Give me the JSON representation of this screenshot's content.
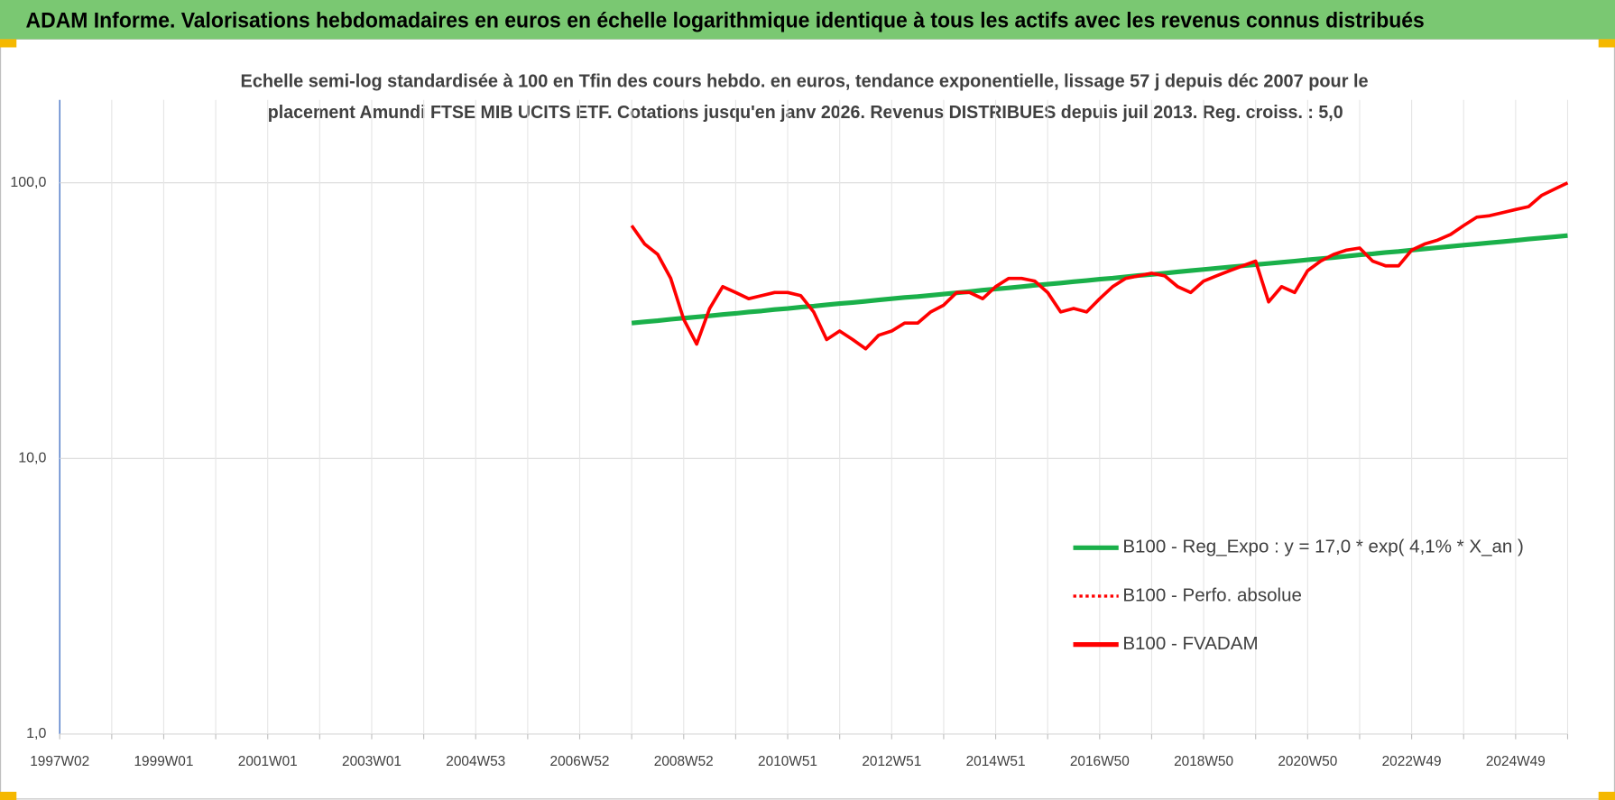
{
  "chart_data": {
    "type": "line",
    "title": "ADAM Informe. Valorisations hebdomadaires en euros en échelle logarithmique identique à tous les actifs avec les revenus connus distribués",
    "subtitle": [
      "Echelle semi-log standardisée à 100 en Tfin des cours hebdo. en euros, tendance exponentielle, lissage 57 j depuis déc 2007 pour le",
      "placement Amundi FTSE MIB UCITS ETF. Cotations jusqu'en janv 2026. Revenus DISTRIBUES depuis juil 2013. Reg. croiss. : 5,0"
    ],
    "categories": [
      "1997W02",
      null,
      null,
      null,
      null,
      null,
      null,
      null,
      "1999W01",
      null,
      null,
      null,
      null,
      null,
      null,
      null,
      "2001W01",
      null,
      null,
      null,
      null,
      null,
      null,
      null,
      "2003W01",
      null,
      null,
      null,
      null,
      null,
      null,
      null,
      "2004W53",
      null,
      null,
      null,
      null,
      null,
      null,
      null,
      "2006W52",
      null,
      null,
      null,
      null,
      null,
      null,
      null,
      "2008W52",
      null,
      null,
      null,
      null,
      null,
      null,
      null,
      "2010W51",
      null,
      null,
      null,
      null,
      null,
      null,
      null,
      "2012W51",
      null,
      null,
      null,
      null,
      null,
      null,
      null,
      "2014W51",
      null,
      null,
      null,
      null,
      null,
      null,
      null,
      "2016W50",
      null,
      null,
      null,
      null,
      null,
      null,
      null,
      "2018W50",
      null,
      null,
      null,
      null,
      null,
      null,
      null,
      "2020W50",
      null,
      null,
      null,
      null,
      null,
      null,
      null,
      "2022W49",
      null,
      null,
      null,
      null,
      null,
      null,
      null,
      "2024W49",
      null,
      null,
      null,
      null
    ],
    "log_scale": true,
    "grid": true,
    "legend": "lower right",
    "ylim": [
      1,
      200
    ],
    "yticks": [
      {
        "value": 1,
        "label": "1,0"
      },
      {
        "value": 10,
        "label": "10,0"
      },
      {
        "value": 100,
        "label": "100,0"
      }
    ],
    "series": [
      {
        "name": "B100 - Reg_Expo : y = 17,0 * exp( 4,1% *  X_an )",
        "color": "#1ab04a",
        "dashed": false,
        "values": [
          null,
          null,
          null,
          null,
          null,
          null,
          null,
          null,
          null,
          null,
          null,
          null,
          null,
          null,
          null,
          null,
          null,
          null,
          null,
          null,
          null,
          null,
          null,
          null,
          null,
          null,
          null,
          null,
          null,
          null,
          null,
          null,
          null,
          null,
          null,
          null,
          null,
          null,
          null,
          null,
          null,
          null,
          null,
          null,
          31.0,
          31.3,
          31.6,
          32.0,
          32.3,
          32.6,
          32.9,
          33.3,
          33.6,
          34.0,
          34.3,
          34.7,
          35.0,
          35.4,
          35.7,
          36.1,
          36.5,
          36.8,
          37.2,
          37.6,
          38.0,
          38.4,
          38.7,
          39.1,
          39.5,
          39.9,
          40.3,
          40.8,
          41.2,
          41.6,
          42.0,
          42.5,
          42.9,
          43.3,
          43.8,
          44.2,
          44.7,
          45.1,
          45.6,
          46.1,
          46.5,
          47.0,
          47.5,
          48.0,
          48.5,
          49.0,
          49.5,
          50.0,
          50.5,
          51.0,
          51.5,
          52.0,
          52.6,
          53.1,
          53.6,
          54.2,
          54.8,
          55.3,
          55.9,
          56.4,
          57.0,
          57.6,
          58.2,
          58.8,
          59.4,
          60.0,
          60.6,
          61.2,
          61.8,
          62.5,
          63.1,
          63.7,
          64.4
        ]
      },
      {
        "name": "B100 - Perfo. absolue",
        "color": "#ff0000",
        "dashed": true,
        "values": [
          null,
          null,
          null,
          null,
          null,
          null,
          null,
          null,
          null,
          null,
          null,
          null,
          null,
          null,
          null,
          null,
          null,
          null,
          null,
          null,
          null,
          null,
          null,
          null,
          null,
          null,
          null,
          null,
          null,
          null,
          null,
          null,
          null,
          null,
          null,
          null,
          null,
          null,
          null,
          null,
          null,
          null,
          null,
          null,
          null,
          null,
          null,
          null,
          null,
          null,
          null,
          null,
          null,
          null,
          null,
          null,
          null,
          null,
          null,
          null,
          null,
          null,
          null,
          null,
          null,
          null,
          null,
          null,
          null,
          null,
          null,
          null,
          null,
          null,
          null,
          null,
          null,
          null,
          null,
          null,
          null,
          null,
          null,
          null,
          null,
          null,
          null,
          null,
          null,
          null,
          null,
          null,
          null,
          null,
          null,
          null,
          null,
          null,
          null,
          null,
          null,
          null,
          null,
          null,
          null,
          null,
          null,
          null,
          null,
          null,
          null,
          null,
          null,
          null,
          null,
          null,
          null
        ]
      },
      {
        "name": "B100 - FVADAM",
        "color": "#ff0000",
        "dashed": false,
        "values": [
          null,
          null,
          null,
          null,
          null,
          null,
          null,
          null,
          null,
          null,
          null,
          null,
          null,
          null,
          null,
          null,
          null,
          null,
          null,
          null,
          null,
          null,
          null,
          null,
          null,
          null,
          null,
          null,
          null,
          null,
          null,
          null,
          null,
          null,
          null,
          null,
          null,
          null,
          null,
          null,
          null,
          null,
          null,
          null,
          70,
          60,
          55,
          45,
          32,
          26,
          35,
          42,
          40,
          38,
          39,
          40,
          40,
          39,
          34,
          27,
          29,
          27,
          25,
          28,
          29,
          31,
          31,
          34,
          36,
          40,
          40,
          38,
          42,
          45,
          45,
          44,
          40,
          34,
          35,
          34,
          38,
          42,
          45,
          46,
          47,
          46,
          42,
          40,
          44,
          46,
          48,
          50,
          52,
          37,
          42,
          40,
          48,
          52,
          55,
          57,
          58,
          52,
          50,
          50,
          57,
          60,
          62,
          65,
          70,
          75,
          76,
          78,
          80,
          82,
          90,
          95,
          100
        ]
      }
    ]
  }
}
